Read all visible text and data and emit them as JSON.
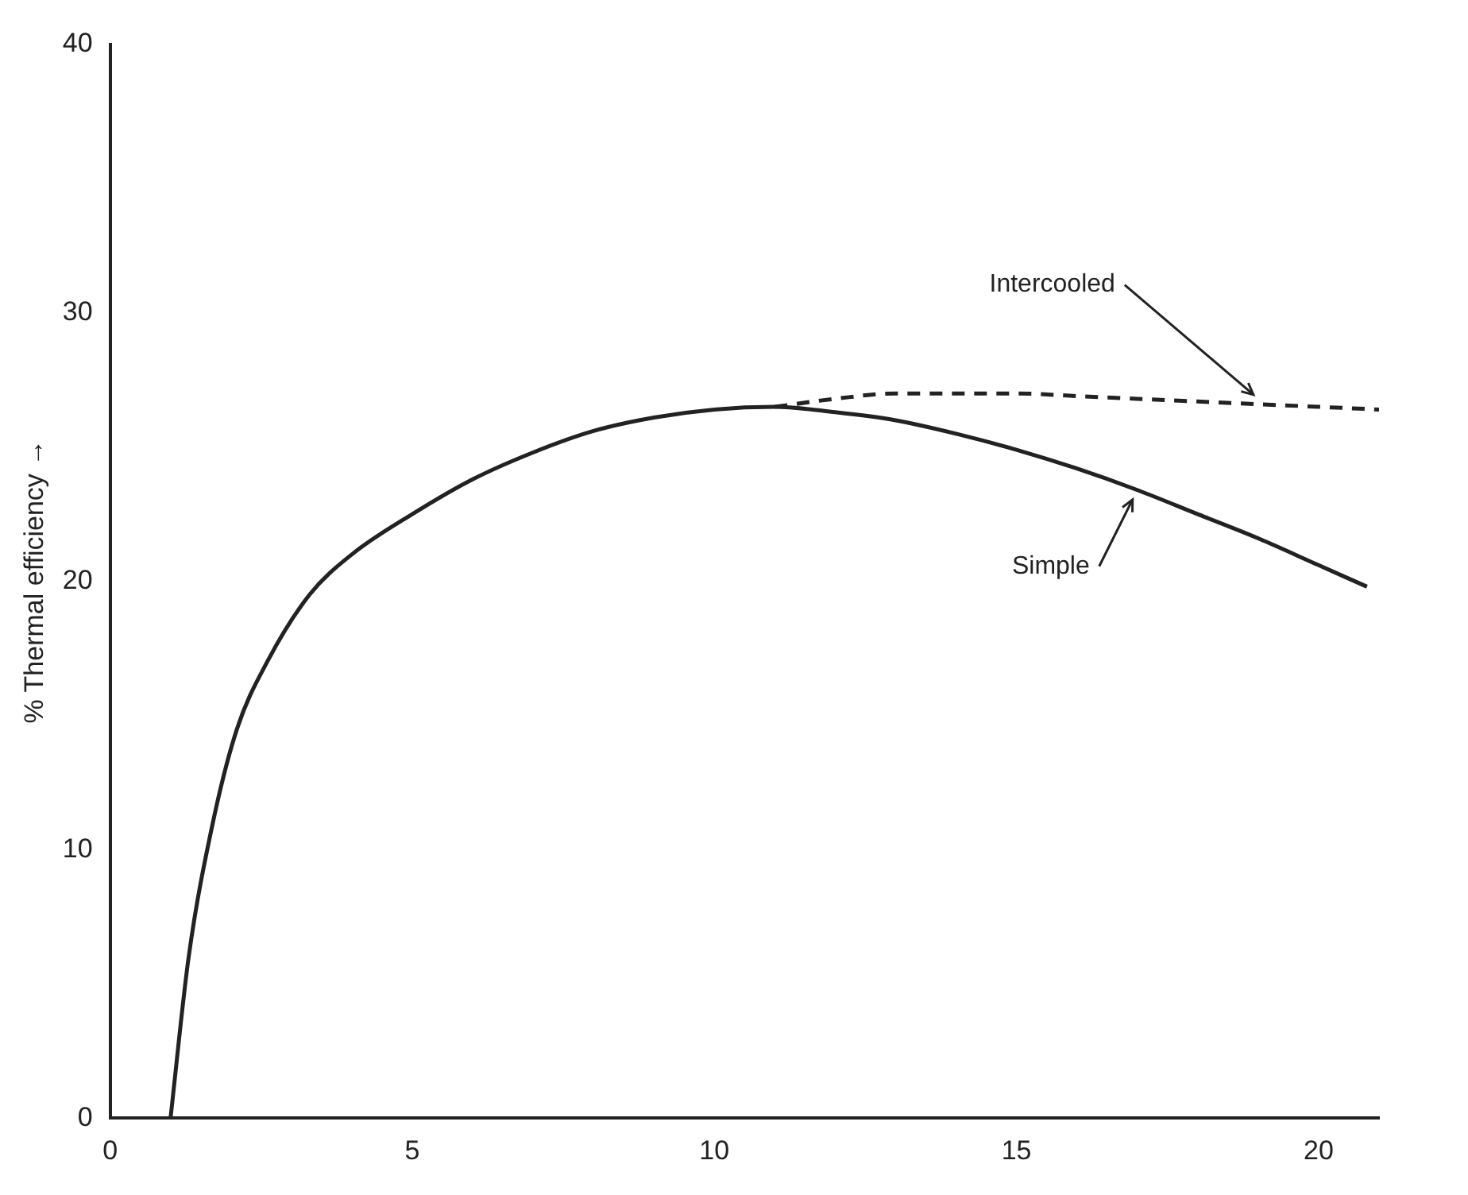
{
  "chart_data": {
    "type": "line",
    "ylabel": "% Thermal efficiency →",
    "xlim": [
      0,
      21
    ],
    "ylim": [
      0,
      40
    ],
    "xticks": [
      0,
      5,
      10,
      15,
      20
    ],
    "yticks": [
      0,
      10,
      20,
      30,
      40
    ],
    "grid": false,
    "legend": false,
    "marker": "none",
    "series": [
      {
        "name": "Simple",
        "color": "#222222",
        "line_style": "solid",
        "x": [
          1,
          1.3,
          1.7,
          2.1,
          2.6,
          3.3,
          4,
          5,
          6,
          7,
          8,
          9,
          10,
          11,
          12,
          13,
          14,
          15,
          16,
          17,
          18,
          19,
          20,
          20.8
        ],
        "values": [
          0,
          6,
          11,
          14.5,
          17,
          19.5,
          21,
          22.5,
          23.8,
          24.8,
          25.6,
          26.1,
          26.4,
          26.5,
          26.3,
          26,
          25.5,
          24.9,
          24.2,
          23.4,
          22.5,
          21.6,
          20.6,
          19.8
        ]
      },
      {
        "name": "Intercooled",
        "color": "#222222",
        "line_style": "dashed",
        "x": [
          11,
          12,
          13,
          14,
          15,
          16,
          17,
          18,
          19,
          20,
          21
        ],
        "values": [
          26.5,
          26.8,
          27,
          27,
          27,
          26.9,
          26.8,
          26.7,
          26.6,
          26.5,
          26.4
        ]
      }
    ]
  }
}
